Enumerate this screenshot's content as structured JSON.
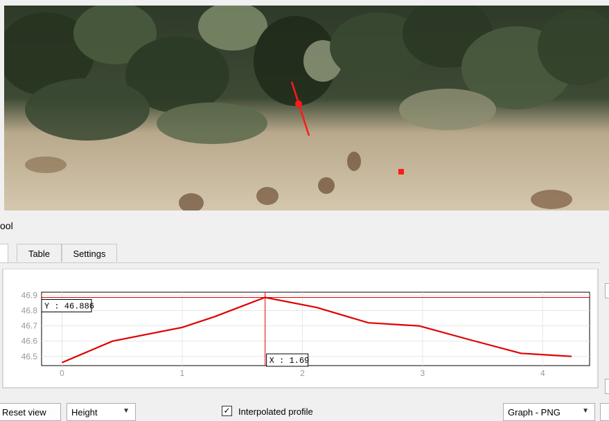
{
  "panel": {
    "title": "ool",
    "tabs": [
      {
        "label": "",
        "active": true
      },
      {
        "label": "Table",
        "active": false
      },
      {
        "label": "Settings",
        "active": false
      }
    ]
  },
  "chart_data": {
    "type": "line",
    "x": [
      0,
      0.42,
      1.0,
      1.27,
      1.69,
      2.12,
      2.55,
      2.97,
      3.39,
      3.82,
      4.24
    ],
    "y": [
      46.46,
      46.6,
      46.69,
      46.76,
      46.886,
      46.82,
      46.72,
      46.7,
      46.61,
      46.52,
      46.5
    ],
    "xlim": [
      -0.17,
      4.39
    ],
    "ylim": [
      46.44,
      46.92
    ],
    "xticks": [
      "0",
      "1",
      "2",
      "3",
      "4"
    ],
    "yticks": [
      "46.5",
      "46.6",
      "46.7",
      "46.8",
      "46.9"
    ],
    "crosshair": {
      "x": 1.69,
      "y": 46.886
    },
    "crosshair_x_label": "X : 1.69",
    "crosshair_y_label": "Y : 46.886",
    "line_color": "#e00000",
    "grid": true
  },
  "controls": {
    "reset_view": "Reset view",
    "height_combo": "Height",
    "interpolated_label": "Interpolated profile",
    "interpolated_checked": "✓",
    "export_combo": "Graph - PNG"
  },
  "colors": {
    "accent": "#e00000"
  }
}
